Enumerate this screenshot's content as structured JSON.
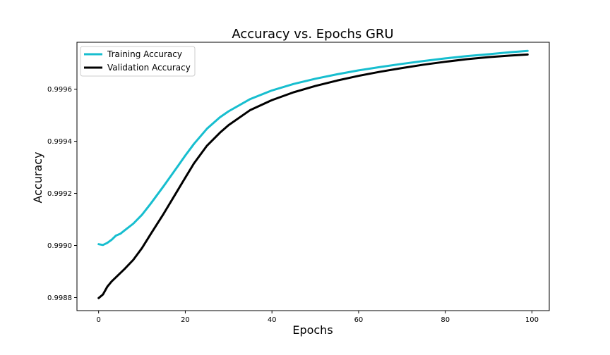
{
  "chart_data": {
    "type": "line",
    "title": "Accuracy vs. Epochs GRU",
    "xlabel": "Epochs",
    "ylabel": "Accuracy",
    "xlim": [
      -5,
      104
    ],
    "ylim": [
      0.99875,
      0.99978
    ],
    "xticks": [
      0,
      20,
      40,
      60,
      80,
      100
    ],
    "yticks": [
      0.9988,
      0.999,
      0.9992,
      0.9994,
      0.9996
    ],
    "ytick_labels": [
      "0.9988",
      "0.9990",
      "0.9992",
      "0.9994",
      "0.9996"
    ],
    "grid": false,
    "legend_position": "top-left",
    "series": [
      {
        "name": "Training Accuracy",
        "color": "#17becf",
        "x": [
          0,
          1,
          2,
          3,
          4,
          5,
          6,
          8,
          10,
          12,
          15,
          18,
          20,
          22,
          25,
          28,
          30,
          35,
          40,
          45,
          50,
          55,
          60,
          65,
          70,
          75,
          80,
          85,
          90,
          95,
          99
        ],
        "y": [
          0.999005,
          0.999002,
          0.99901,
          0.999022,
          0.999038,
          0.999045,
          0.999058,
          0.999084,
          0.999118,
          0.99916,
          0.999228,
          0.999298,
          0.999345,
          0.99939,
          0.999448,
          0.999492,
          0.999515,
          0.999562,
          0.999595,
          0.99962,
          0.99964,
          0.999657,
          0.999672,
          0.999685,
          0.999697,
          0.999708,
          0.999718,
          0.999727,
          0.999734,
          0.999742,
          0.999747
        ]
      },
      {
        "name": "Validation Accuracy",
        "color": "#000000",
        "x": [
          0,
          1,
          2,
          3,
          4,
          5,
          6,
          8,
          10,
          12,
          15,
          18,
          20,
          22,
          25,
          28,
          30,
          35,
          40,
          45,
          50,
          55,
          60,
          65,
          70,
          75,
          80,
          85,
          90,
          95,
          99
        ],
        "y": [
          0.998798,
          0.998812,
          0.998842,
          0.998862,
          0.998878,
          0.998894,
          0.99891,
          0.998945,
          0.99899,
          0.999043,
          0.999122,
          0.999205,
          0.99926,
          0.999315,
          0.999383,
          0.999433,
          0.999462,
          0.99952,
          0.999558,
          0.999588,
          0.999612,
          0.999633,
          0.999651,
          0.999667,
          0.999681,
          0.999694,
          0.999705,
          0.999715,
          0.999723,
          0.999729,
          0.999733
        ]
      }
    ]
  }
}
